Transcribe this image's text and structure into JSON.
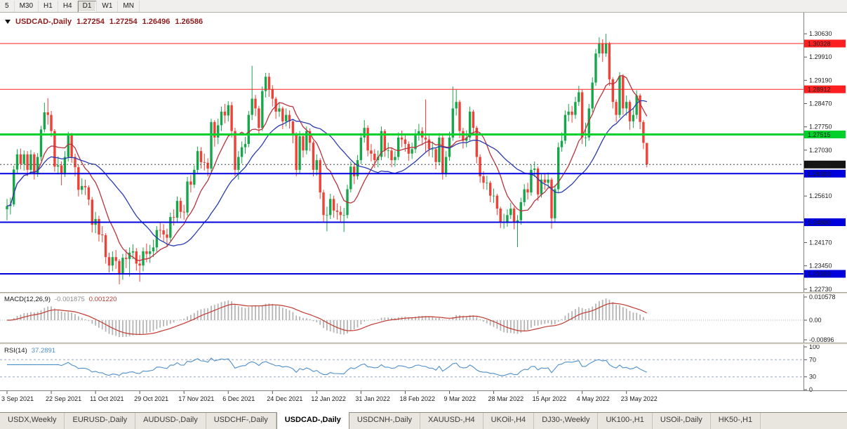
{
  "toolbar": {
    "timeframes": [
      "5",
      "M30",
      "H1",
      "H4",
      "D1",
      "W1",
      "MN"
    ],
    "active": "D1"
  },
  "chart_title": {
    "symbol": "USDCAD-,Daily",
    "open": "1.27254",
    "high": "1.27254",
    "low": "1.26496",
    "close": "1.26586"
  },
  "colors": {
    "candle_up": "#17a74a",
    "candle_down": "#ee4137",
    "ma_fast": "#b8323c",
    "ma_slow": "#2a3bb0",
    "level_red": "#fe2020",
    "level_green": "#00d02c",
    "level_blue": "#0000dd",
    "current_price_badge": "#141414",
    "macd_hist": "#b5b5b5",
    "macd_signal": "#bf3a30",
    "rsi_line": "#4e8fcb"
  },
  "axis": {
    "label_every": 13,
    "price_ticks": [
      {
        "label": "1.30630",
        "value": 1.3063
      },
      {
        "label": "1.29910",
        "value": 1.2991
      },
      {
        "label": "1.29190",
        "value": 1.2919
      },
      {
        "label": "1.28470",
        "value": 1.2847
      },
      {
        "label": "1.27750",
        "value": 1.2775
      },
      {
        "label": "1.27030",
        "value": 1.2703
      },
      {
        "label": "1.25610",
        "value": 1.2561
      },
      {
        "label": "1.24170",
        "value": 1.2417
      },
      {
        "label": "1.23450",
        "value": 1.2345
      },
      {
        "label": "1.22730",
        "value": 1.2273
      }
    ],
    "dates": [
      "3 Sep 2021",
      "22 Sep 2021",
      "11 Oct 2021",
      "29 Oct 2021",
      "17 Nov 2021",
      "6 Dec 2021",
      "24 Dec 2021",
      "12 Jan 2022",
      "31 Jan 2022",
      "18 Feb 2022",
      "9 Mar 2022",
      "28 Mar 2022",
      "15 Apr 2022",
      "4 May 2022",
      "23 May 2022"
    ]
  },
  "chart_data": {
    "type": "candlestick",
    "symbol": "USDCAD",
    "timeframe": "Daily",
    "title": "USDCAD-,Daily",
    "price_range": [
      1.22638,
      1.31284
    ],
    "current_price": {
      "value": 1.26586,
      "label": "1.26586"
    },
    "levels": [
      {
        "price": 1.30328,
        "label": "1.30328",
        "color": "#fe2020",
        "width": 1
      },
      {
        "price": 1.28912,
        "label": "1.28912",
        "color": "#fe2020",
        "width": 1
      },
      {
        "price": 1.27515,
        "label": "1.27515",
        "color": "#00d02c",
        "width": 3
      },
      {
        "price": 1.26303,
        "label": "1.26303",
        "color": "#0000dd",
        "width": 2
      },
      {
        "price": 1.248,
        "label": "1.24800",
        "color": "#0000dd",
        "width": 2
      },
      {
        "price": 1.23203,
        "label": "1.23203",
        "color": "#0000dd",
        "width": 2
      }
    ],
    "overlays": [
      {
        "name": "ma-fast",
        "type": "sma",
        "period": 10,
        "color": "#b8323c"
      },
      {
        "name": "ma-slow",
        "type": "sma",
        "period": 25,
        "color": "#2a3bb0"
      }
    ],
    "candles": [
      [
        1.252,
        1.2552,
        1.2486,
        1.253
      ],
      [
        1.253,
        1.2556,
        1.2504,
        1.2535
      ],
      [
        1.2535,
        1.2655,
        1.2528,
        1.2643
      ],
      [
        1.2643,
        1.2706,
        1.2632,
        1.269
      ],
      [
        1.269,
        1.2708,
        1.2644,
        1.266
      ],
      [
        1.266,
        1.2702,
        1.264,
        1.269
      ],
      [
        1.269,
        1.27,
        1.2622,
        1.2642
      ],
      [
        1.2642,
        1.2704,
        1.263,
        1.269
      ],
      [
        1.269,
        1.2696,
        1.2612,
        1.2632
      ],
      [
        1.2632,
        1.2694,
        1.262,
        1.2682
      ],
      [
        1.2682,
        1.2778,
        1.267,
        1.2767
      ],
      [
        1.2767,
        1.285,
        1.2758,
        1.282
      ],
      [
        1.282,
        1.2864,
        1.2782,
        1.2812
      ],
      [
        1.2812,
        1.2824,
        1.2744,
        1.2762
      ],
      [
        1.2762,
        1.2768,
        1.2636,
        1.2652
      ],
      [
        1.2652,
        1.2684,
        1.2628,
        1.2656
      ],
      [
        1.2656,
        1.2668,
        1.2594,
        1.2632
      ],
      [
        1.2632,
        1.27,
        1.262,
        1.2682
      ],
      [
        1.2682,
        1.276,
        1.2668,
        1.2748
      ],
      [
        1.2748,
        1.2756,
        1.2664,
        1.2682
      ],
      [
        1.2682,
        1.2692,
        1.2622,
        1.265
      ],
      [
        1.265,
        1.2658,
        1.256,
        1.258
      ],
      [
        1.258,
        1.2616,
        1.2566,
        1.2592
      ],
      [
        1.2592,
        1.2612,
        1.2564,
        1.2588
      ],
      [
        1.2588,
        1.2594,
        1.2532,
        1.255
      ],
      [
        1.255,
        1.2558,
        1.2448,
        1.2472
      ],
      [
        1.2472,
        1.2512,
        1.2446,
        1.249
      ],
      [
        1.249,
        1.25,
        1.242,
        1.2442
      ],
      [
        1.2442,
        1.2468,
        1.2418,
        1.244
      ],
      [
        1.244,
        1.2446,
        1.2352,
        1.2372
      ],
      [
        1.2372,
        1.2386,
        1.2324,
        1.2346
      ],
      [
        1.2346,
        1.239,
        1.2328,
        1.2372
      ],
      [
        1.2372,
        1.2394,
        1.2336,
        1.236
      ],
      [
        1.236,
        1.2366,
        1.2288,
        1.2322
      ],
      [
        1.2322,
        1.2382,
        1.2302,
        1.237
      ],
      [
        1.237,
        1.2396,
        1.2338,
        1.2366
      ],
      [
        1.2366,
        1.2402,
        1.2312,
        1.2386
      ],
      [
        1.2386,
        1.2412,
        1.2366,
        1.239
      ],
      [
        1.239,
        1.24,
        1.233,
        1.2352
      ],
      [
        1.2352,
        1.2378,
        1.2296,
        1.2346
      ],
      [
        1.2346,
        1.2402,
        1.2328,
        1.239
      ],
      [
        1.239,
        1.2414,
        1.2356,
        1.2382
      ],
      [
        1.2382,
        1.241,
        1.2354,
        1.239
      ],
      [
        1.239,
        1.2426,
        1.2372,
        1.2402
      ],
      [
        1.2402,
        1.2468,
        1.2388,
        1.2456
      ],
      [
        1.2456,
        1.248,
        1.2432,
        1.2455
      ],
      [
        1.2455,
        1.2474,
        1.242,
        1.2442
      ],
      [
        1.2442,
        1.246,
        1.2406,
        1.2432
      ],
      [
        1.2432,
        1.251,
        1.2422,
        1.2496
      ],
      [
        1.2496,
        1.252,
        1.247,
        1.2494
      ],
      [
        1.2494,
        1.256,
        1.248,
        1.2546
      ],
      [
        1.2546,
        1.2556,
        1.2492,
        1.2512
      ],
      [
        1.2512,
        1.2534,
        1.2488,
        1.251
      ],
      [
        1.251,
        1.262,
        1.25,
        1.2606
      ],
      [
        1.2606,
        1.2626,
        1.2572,
        1.2596
      ],
      [
        1.2596,
        1.2656,
        1.2586,
        1.2642
      ],
      [
        1.2642,
        1.2714,
        1.2632,
        1.27
      ],
      [
        1.27,
        1.2712,
        1.2646,
        1.2666
      ],
      [
        1.2666,
        1.2692,
        1.264,
        1.2664
      ],
      [
        1.2664,
        1.2678,
        1.2622,
        1.2646
      ],
      [
        1.2646,
        1.28,
        1.2636,
        1.279
      ],
      [
        1.279,
        1.2796,
        1.2714,
        1.2742
      ],
      [
        1.2742,
        1.28,
        1.2722,
        1.278
      ],
      [
        1.278,
        1.2838,
        1.2762,
        1.2822
      ],
      [
        1.2822,
        1.2846,
        1.2786,
        1.281
      ],
      [
        1.281,
        1.2854,
        1.2792,
        1.2842
      ],
      [
        1.2842,
        1.2852,
        1.2742,
        1.2762
      ],
      [
        1.2762,
        1.2772,
        1.2622,
        1.2642
      ],
      [
        1.2642,
        1.27,
        1.2612,
        1.2682
      ],
      [
        1.2682,
        1.273,
        1.2662,
        1.2712
      ],
      [
        1.2712,
        1.2744,
        1.2692,
        1.2722
      ],
      [
        1.2722,
        1.2824,
        1.2712,
        1.2812
      ],
      [
        1.2812,
        1.2964,
        1.2796,
        1.2862
      ],
      [
        1.2862,
        1.2874,
        1.2808,
        1.2832
      ],
      [
        1.2832,
        1.284,
        1.2752,
        1.2772
      ],
      [
        1.2772,
        1.29,
        1.2762,
        1.2886
      ],
      [
        1.2886,
        1.2942,
        1.2866,
        1.293
      ],
      [
        1.293,
        1.2942,
        1.2868,
        1.2892
      ],
      [
        1.2892,
        1.2904,
        1.2838,
        1.2862
      ],
      [
        1.2862,
        1.2868,
        1.28,
        1.2822
      ],
      [
        1.2822,
        1.285,
        1.2806,
        1.2832
      ],
      [
        1.2832,
        1.2838,
        1.2768,
        1.2792
      ],
      [
        1.2792,
        1.2832,
        1.2776,
        1.2812
      ],
      [
        1.2812,
        1.2826,
        1.277,
        1.2792
      ],
      [
        1.2792,
        1.2798,
        1.2724,
        1.2752
      ],
      [
        1.2752,
        1.2758,
        1.2622,
        1.2642
      ],
      [
        1.2642,
        1.2762,
        1.2632,
        1.2746
      ],
      [
        1.2746,
        1.2756,
        1.268,
        1.2702
      ],
      [
        1.2702,
        1.2776,
        1.269,
        1.2762
      ],
      [
        1.2762,
        1.277,
        1.27,
        1.2726
      ],
      [
        1.2726,
        1.2732,
        1.2622,
        1.2642
      ],
      [
        1.2642,
        1.269,
        1.2624,
        1.2672
      ],
      [
        1.2672,
        1.2678,
        1.2552,
        1.2572
      ],
      [
        1.2572,
        1.258,
        1.2482,
        1.2502
      ],
      [
        1.2502,
        1.2528,
        1.2452,
        1.2502
      ],
      [
        1.2502,
        1.2568,
        1.249,
        1.2552
      ],
      [
        1.2552,
        1.2562,
        1.2494,
        1.2516
      ],
      [
        1.2516,
        1.2538,
        1.2488,
        1.2512
      ],
      [
        1.2512,
        1.253,
        1.2478,
        1.2502
      ],
      [
        1.2502,
        1.2524,
        1.245,
        1.2502
      ],
      [
        1.2502,
        1.2596,
        1.2492,
        1.2582
      ],
      [
        1.2582,
        1.2668,
        1.2572,
        1.2652
      ],
      [
        1.2652,
        1.2662,
        1.2598,
        1.2622
      ],
      [
        1.2622,
        1.2688,
        1.2612,
        1.2672
      ],
      [
        1.2672,
        1.2756,
        1.266,
        1.2742
      ],
      [
        1.2742,
        1.2796,
        1.2726,
        1.2772
      ],
      [
        1.2772,
        1.278,
        1.2684,
        1.2702
      ],
      [
        1.2702,
        1.2722,
        1.2668,
        1.2692
      ],
      [
        1.2692,
        1.2706,
        1.2648,
        1.2672
      ],
      [
        1.2672,
        1.2702,
        1.265,
        1.2682
      ],
      [
        1.2682,
        1.2776,
        1.2672,
        1.2762
      ],
      [
        1.2762,
        1.2768,
        1.2682,
        1.2702
      ],
      [
        1.2702,
        1.2726,
        1.2678,
        1.2702
      ],
      [
        1.2702,
        1.2712,
        1.265,
        1.2672
      ],
      [
        1.2672,
        1.27,
        1.2652,
        1.2682
      ],
      [
        1.2682,
        1.2758,
        1.2672,
        1.2742
      ],
      [
        1.2742,
        1.2764,
        1.2712,
        1.2736
      ],
      [
        1.2736,
        1.2752,
        1.2698,
        1.2722
      ],
      [
        1.2722,
        1.273,
        1.267,
        1.2692
      ],
      [
        1.2692,
        1.2726,
        1.2676,
        1.2706
      ],
      [
        1.2706,
        1.2768,
        1.2694,
        1.2752
      ],
      [
        1.2752,
        1.2784,
        1.2732,
        1.2762
      ],
      [
        1.2762,
        1.2774,
        1.2718,
        1.2742
      ],
      [
        1.2742,
        1.286,
        1.2698,
        1.2736
      ],
      [
        1.2736,
        1.2748,
        1.2684,
        1.2706
      ],
      [
        1.2706,
        1.273,
        1.268,
        1.2706
      ],
      [
        1.2706,
        1.2712,
        1.2644,
        1.2666
      ],
      [
        1.2666,
        1.2756,
        1.2656,
        1.2742
      ],
      [
        1.2742,
        1.2748,
        1.2612,
        1.2632
      ],
      [
        1.2632,
        1.27,
        1.262,
        1.2682
      ],
      [
        1.2682,
        1.276,
        1.267,
        1.2742
      ],
      [
        1.2742,
        1.29,
        1.2732,
        1.2832
      ],
      [
        1.2832,
        1.289,
        1.281,
        1.2852
      ],
      [
        1.2852,
        1.2858,
        1.274,
        1.2762
      ],
      [
        1.2762,
        1.2772,
        1.2708,
        1.2732
      ],
      [
        1.2732,
        1.2764,
        1.2712,
        1.2742
      ],
      [
        1.2742,
        1.2838,
        1.2732,
        1.2822
      ],
      [
        1.2822,
        1.2828,
        1.275,
        1.2772
      ],
      [
        1.2772,
        1.2778,
        1.2662,
        1.2682
      ],
      [
        1.2682,
        1.269,
        1.2602,
        1.2622
      ],
      [
        1.2622,
        1.2638,
        1.2582,
        1.2602
      ],
      [
        1.2602,
        1.2624,
        1.258,
        1.2602
      ],
      [
        1.2602,
        1.2608,
        1.2542,
        1.2562
      ],
      [
        1.2562,
        1.2584,
        1.254,
        1.2562
      ],
      [
        1.2562,
        1.2568,
        1.2502,
        1.2522
      ],
      [
        1.2522,
        1.2528,
        1.2462,
        1.2482
      ],
      [
        1.2482,
        1.2506,
        1.246,
        1.2482
      ],
      [
        1.2482,
        1.252,
        1.2466,
        1.2502
      ],
      [
        1.2502,
        1.254,
        1.249,
        1.2522
      ],
      [
        1.2522,
        1.2528,
        1.2458,
        1.2482
      ],
      [
        1.2482,
        1.2502,
        1.2403,
        1.2486
      ],
      [
        1.2486,
        1.2556,
        1.2472,
        1.2542
      ],
      [
        1.2542,
        1.2598,
        1.253,
        1.2582
      ],
      [
        1.2582,
        1.2602,
        1.255,
        1.2572
      ],
      [
        1.2572,
        1.2658,
        1.2562,
        1.2642
      ],
      [
        1.2642,
        1.2668,
        1.262,
        1.2646
      ],
      [
        1.2646,
        1.2652,
        1.2546,
        1.2566
      ],
      [
        1.2566,
        1.2628,
        1.2556,
        1.2612
      ],
      [
        1.2612,
        1.2632,
        1.258,
        1.2602
      ],
      [
        1.2602,
        1.2634,
        1.2586,
        1.2612
      ],
      [
        1.2612,
        1.2618,
        1.246,
        1.2492
      ],
      [
        1.2492,
        1.2596,
        1.2482,
        1.2582
      ],
      [
        1.2582,
        1.2726,
        1.2572,
        1.2712
      ],
      [
        1.2712,
        1.2758,
        1.2698,
        1.2732
      ],
      [
        1.2732,
        1.2826,
        1.2722,
        1.2812
      ],
      [
        1.2812,
        1.2846,
        1.2792,
        1.2822
      ],
      [
        1.2822,
        1.284,
        1.2788,
        1.2812
      ],
      [
        1.2812,
        1.2868,
        1.28,
        1.2852
      ],
      [
        1.2852,
        1.2902,
        1.284,
        1.2882
      ],
      [
        1.2882,
        1.289,
        1.2722,
        1.2742
      ],
      [
        1.2742,
        1.2788,
        1.2714,
        1.2742
      ],
      [
        1.2742,
        1.2846,
        1.2732,
        1.2832
      ],
      [
        1.2832,
        1.2928,
        1.282,
        1.2912
      ],
      [
        1.2912,
        1.3016,
        1.2902,
        1.3002
      ],
      [
        1.3002,
        1.3052,
        1.299,
        1.3032
      ],
      [
        1.3032,
        1.3046,
        1.2976,
        1.3002
      ],
      [
        1.3002,
        1.3063,
        1.2992,
        1.3032
      ],
      [
        1.3032,
        1.3038,
        1.2902,
        1.2922
      ],
      [
        1.2922,
        1.2928,
        1.2832,
        1.2852
      ],
      [
        1.2852,
        1.286,
        1.279,
        1.2812
      ],
      [
        1.2812,
        1.2944,
        1.2802,
        1.2932
      ],
      [
        1.2932,
        1.2938,
        1.2812,
        1.2832
      ],
      [
        1.2832,
        1.2872,
        1.281,
        1.2852
      ],
      [
        1.2852,
        1.2858,
        1.2766,
        1.2792
      ],
      [
        1.2792,
        1.2834,
        1.2772,
        1.2812
      ],
      [
        1.2812,
        1.2888,
        1.28,
        1.2872
      ],
      [
        1.2872,
        1.2878,
        1.2768,
        1.279
      ],
      [
        1.279,
        1.2796,
        1.2706,
        1.27254
      ],
      [
        1.27254,
        1.27254,
        1.26496,
        1.26586
      ]
    ]
  },
  "macd": {
    "name": "MACD(12,26,9)",
    "value_main": "-0.001875",
    "value_signal": "0.001220",
    "params": {
      "fast": 12,
      "slow": 26,
      "signal": 9
    },
    "range": [
      -0.00896,
      0.010578
    ],
    "scale": [
      {
        "label": "0.010578",
        "value": 0.010578
      },
      {
        "label": "0.00",
        "value": 0
      },
      {
        "label": "-0.00896",
        "value": -0.00896
      }
    ]
  },
  "rsi": {
    "name": "RSI(14)",
    "period": 14,
    "value": "37.2891",
    "levels": [
      70,
      30
    ],
    "scale": [
      {
        "label": "100",
        "value": 100
      },
      {
        "label": "70",
        "value": 70
      },
      {
        "label": "30",
        "value": 30
      },
      {
        "label": "0",
        "value": 0
      }
    ]
  },
  "tabs": {
    "items": [
      "USDX,Weekly",
      "EURUSD-,Daily",
      "AUDUSD-,Daily",
      "USDCHF-,Daily",
      "USDCAD-,Daily",
      "USDCNH-,Daily",
      "XAUUSD-,H4",
      "UKOil-,H4",
      "DJ30-,Weekly",
      "UK100-,H1",
      "USOil-,Daily",
      "HK50-,H1"
    ],
    "active": "USDCAD-,Daily"
  }
}
